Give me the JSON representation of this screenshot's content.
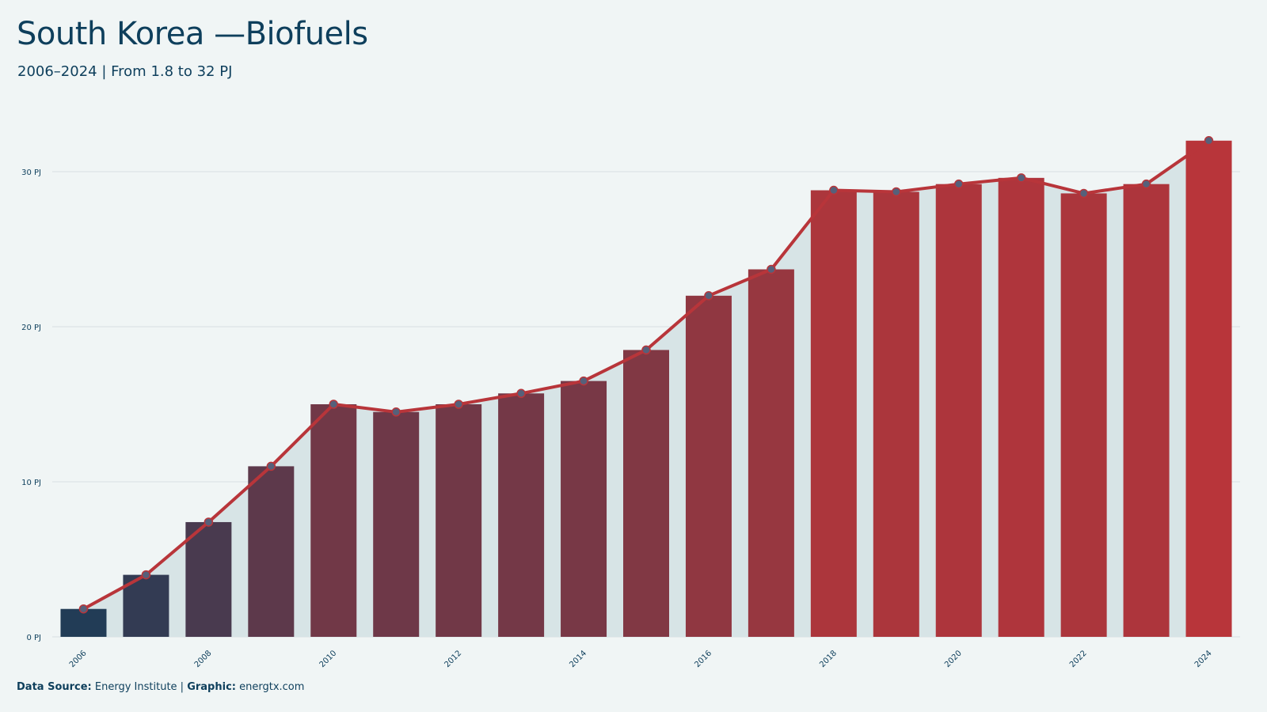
{
  "header": {
    "title": "South Korea —Biofuels",
    "subtitle": "2006–2024 | From 1.8 to 32 PJ"
  },
  "footer": {
    "source_label": "Data Source:",
    "source_value": "Energy Institute |",
    "graphic_label": "Graphic:",
    "graphic_value": "energtx.com"
  },
  "chart_data": {
    "type": "bar",
    "x": [
      2006,
      2007,
      2008,
      2009,
      2010,
      2011,
      2012,
      2013,
      2014,
      2015,
      2016,
      2017,
      2018,
      2019,
      2020,
      2021,
      2022,
      2023,
      2024
    ],
    "values": [
      1.8,
      4.0,
      7.4,
      11.0,
      15.0,
      14.5,
      15.0,
      15.7,
      16.5,
      18.5,
      22.0,
      23.7,
      28.8,
      28.7,
      29.2,
      29.6,
      28.6,
      29.2,
      32.0
    ],
    "overlay": "line with markers and shaded area following the same values",
    "x_tick_labels": [
      "2006",
      "2008",
      "2010",
      "2012",
      "2014",
      "2016",
      "2018",
      "2020",
      "2022",
      "2024"
    ],
    "y_ticks": [
      0,
      10,
      20,
      30
    ],
    "y_unit": "PJ",
    "ylim": [
      0,
      34
    ],
    "grid": "horizontal",
    "legend": "none",
    "colors": {
      "low": "#0b3d5a",
      "high": "#b8353a",
      "line": "#b8353a",
      "marker_fill": "#56607a",
      "area": "#d7e4e6",
      "grid": "#d7e0e2",
      "text": "#0e3f5c"
    }
  }
}
